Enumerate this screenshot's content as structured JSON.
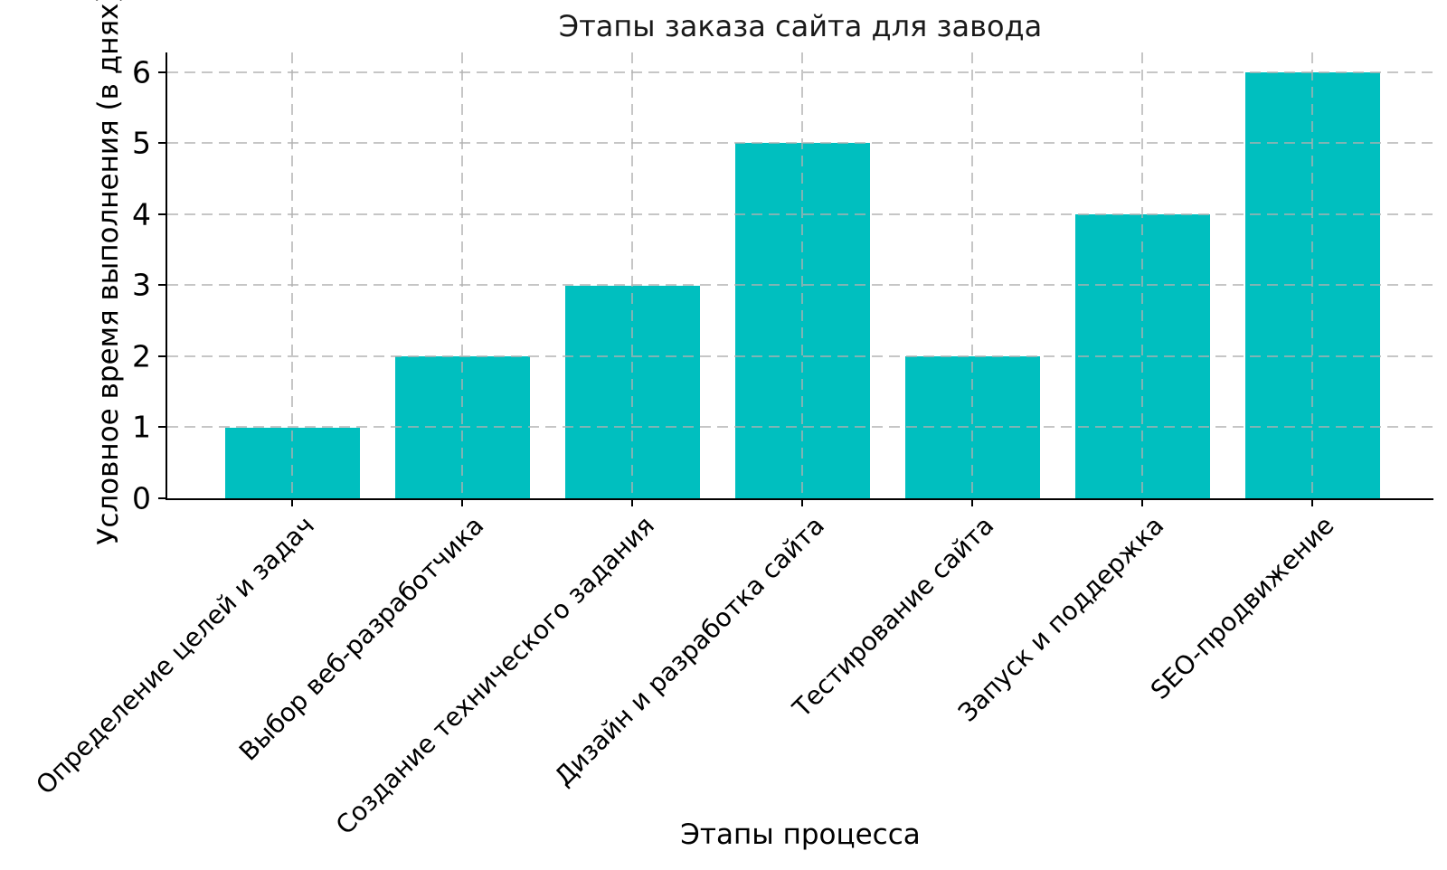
{
  "chart_data": {
    "type": "bar",
    "title": "Этапы заказа сайта для завода",
    "xlabel": "Этапы процесса",
    "ylabel": "Условное время выполнения (в днях)",
    "categories": [
      "Определение целей и задач",
      "Выбор веб-разработчика",
      "Создание технического задания",
      "Дизайн и разработка сайта",
      "Тестирование сайта",
      "Запуск и поддержка",
      "SEO-продвижение"
    ],
    "values": [
      1,
      2,
      3,
      5,
      2,
      4,
      6
    ],
    "yticks": [
      0,
      1,
      2,
      3,
      4,
      5,
      6
    ],
    "ylim": [
      0,
      6.28
    ],
    "bar_color": "#00bfbf",
    "grid": true,
    "grid_color": "#b0b0b0",
    "grid_style": "dashed",
    "spine_color": "#000000",
    "background": "#ffffff",
    "legend_position": "none"
  }
}
